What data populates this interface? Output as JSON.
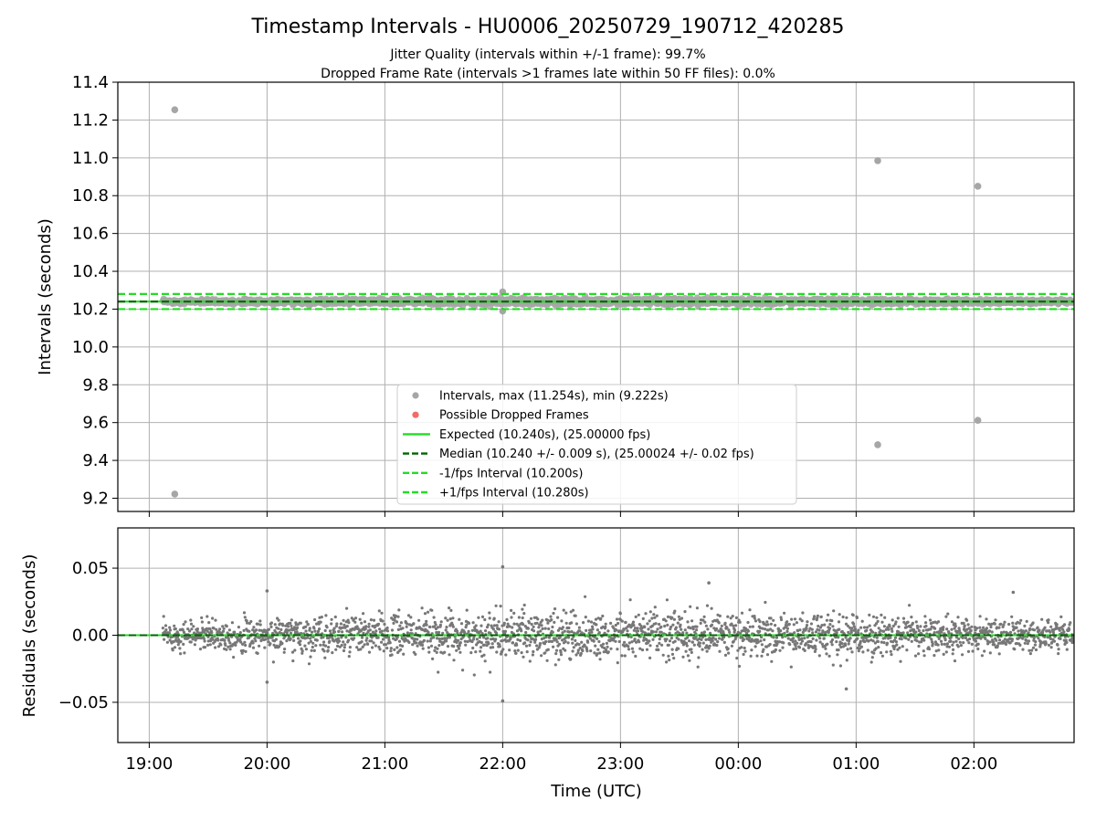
{
  "chart_data": {
    "type": "scatter",
    "title": "Timestamp Intervals - HU0006_20250729_190712_420285",
    "subtitle_lines": [
      "Jitter Quality (intervals within +/-1 frame): 99.7%",
      "Dropped Frame Rate (intervals >1 frames late within 50 FF files): 0.0%"
    ],
    "xlabel": "Time (UTC)",
    "x_ticks": [
      "19:00",
      "20:00",
      "21:00",
      "22:00",
      "23:00",
      "00:00",
      "01:00",
      "02:00"
    ],
    "x_range": [
      "2025-07-29T18:44",
      "2025-07-30T02:51"
    ],
    "data_start": "2025-07-29T19:07",
    "data_end": "2025-07-30T02:51",
    "grid": true,
    "panels": [
      {
        "name": "intervals",
        "ylabel": "Intervals (seconds)",
        "ylim": [
          9.13,
          11.4
        ],
        "y_ticks": [
          "11.4",
          "11.2",
          "11.0",
          "10.8",
          "10.6",
          "10.4",
          "10.2",
          "10.0",
          "9.8",
          "9.6",
          "9.4",
          "9.2"
        ],
        "series": [
          {
            "name": "Intervals, max (11.254s), min (9.222s)",
            "kind": "scatter",
            "color": "#a6a6a6",
            "center": 10.24,
            "spread": 0.009,
            "outliers": [
              {
                "time": "2025-07-29T19:13",
                "value": 11.254
              },
              {
                "time": "2025-07-29T19:13",
                "value": 9.222
              },
              {
                "time": "2025-07-30T01:11",
                "value": 10.985
              },
              {
                "time": "2025-07-30T01:11",
                "value": 9.483
              },
              {
                "time": "2025-07-30T02:02",
                "value": 10.85
              },
              {
                "time": "2025-07-30T02:02",
                "value": 9.612
              },
              {
                "time": "2025-07-29T22:00",
                "value": 10.291
              },
              {
                "time": "2025-07-29T22:00",
                "value": 10.19
              }
            ]
          },
          {
            "name": "Possible Dropped Frames",
            "kind": "scatter",
            "color": "#f26b6b",
            "values": []
          },
          {
            "name": "Expected (10.240s), (25.00000 fps)",
            "kind": "hline",
            "value": 10.24,
            "color": "#22dd22",
            "style": "solid"
          },
          {
            "name": "Median (10.240 +/- 0.009 s), (25.00024 +/- 0.02 fps)",
            "kind": "hline",
            "value": 10.24,
            "color": "#006400",
            "style": "dashed"
          },
          {
            "name": "-1/fps Interval (10.200s)",
            "kind": "hline",
            "value": 10.2,
            "color": "#22dd22",
            "style": "dashed"
          },
          {
            "name": "+1/fps Interval (10.280s)",
            "kind": "hline",
            "value": 10.28,
            "color": "#22dd22",
            "style": "dashed"
          }
        ],
        "legend_position": "lower center"
      },
      {
        "name": "residuals",
        "ylabel": "Residuals (seconds)",
        "ylim": [
          -0.08,
          0.08
        ],
        "y_ticks": [
          "0.05",
          "0.00",
          "−0.05"
        ],
        "series": [
          {
            "name": "residuals",
            "kind": "scatter",
            "color": "#777777",
            "center": 0.0,
            "spread": 0.009,
            "outliers": [
              {
                "time": "2025-07-29T22:00",
                "value": 0.051
              },
              {
                "time": "2025-07-29T22:00",
                "value": -0.049
              },
              {
                "time": "2025-07-29T23:45",
                "value": 0.039
              },
              {
                "time": "2025-07-30T00:55",
                "value": -0.04
              },
              {
                "time": "2025-07-29T20:00",
                "value": 0.033
              },
              {
                "time": "2025-07-29T20:00",
                "value": -0.035
              },
              {
                "time": "2025-07-30T02:20",
                "value": 0.032
              }
            ]
          },
          {
            "name": "zero",
            "kind": "hline",
            "value": 0.0,
            "color": "#22dd22",
            "style": "solid"
          },
          {
            "name": "zero-median",
            "kind": "hline",
            "value": 0.0,
            "color": "#006400",
            "style": "dashed"
          }
        ]
      }
    ]
  }
}
